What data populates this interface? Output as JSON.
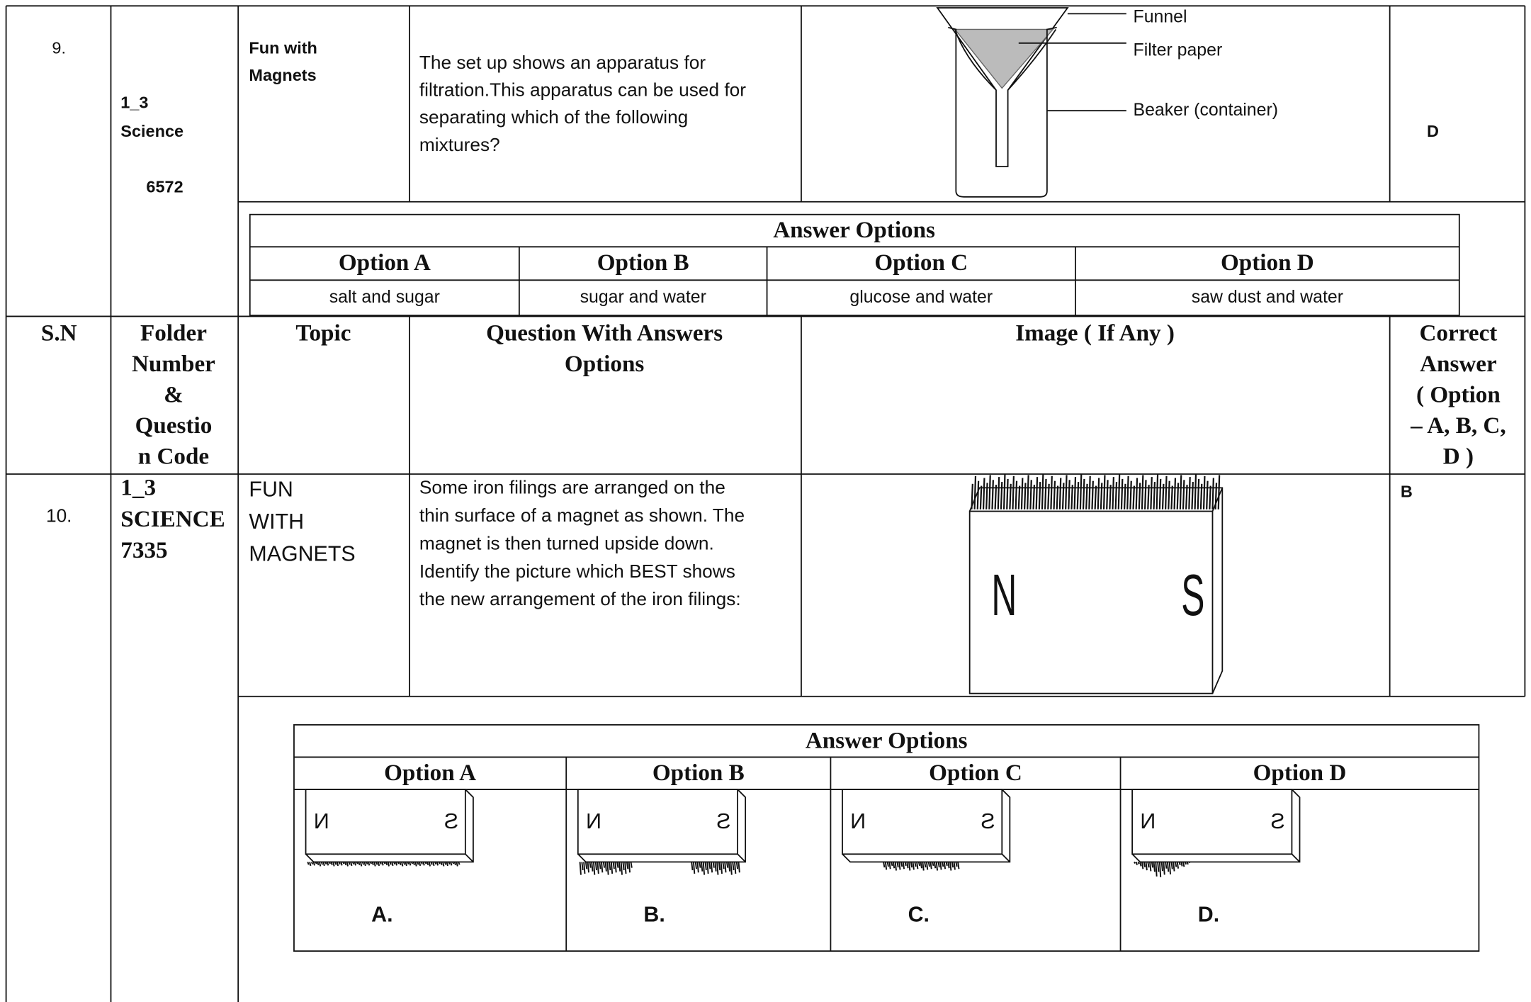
{
  "row9": {
    "sn": "9.",
    "folder": [
      "1_3",
      "Science",
      "6572"
    ],
    "topic": [
      "Fun with",
      "Magnets"
    ],
    "question": [
      "The set up shows an apparatus for",
      "filtration.This apparatus can be used for",
      "separating which of the following",
      "mixtures?"
    ],
    "image_labels": [
      "Funnel",
      "Filter paper",
      "Beaker (container)"
    ],
    "answer": "D",
    "options_title": "Answer Options",
    "option_headers": [
      "Option A",
      "Option B",
      "Option C",
      "Option D"
    ],
    "options": [
      "salt and sugar",
      "sugar and water",
      "glucose and water",
      "saw dust and water"
    ]
  },
  "header": {
    "sn": "S.N",
    "folder": [
      "Folder",
      "Number",
      "&",
      "Questio",
      "n Code"
    ],
    "topic": "Topic",
    "question": [
      "Question With Answers",
      "Options"
    ],
    "image": "Image ( If Any )",
    "answer": [
      "Correct",
      "Answer",
      "( Option",
      "– A, B, C,",
      "D )"
    ]
  },
  "row10": {
    "sn": "10.",
    "folder": [
      "1_3",
      "SCIENCE",
      "7335"
    ],
    "topic": [
      "FUN",
      "WITH",
      "MAGNETS"
    ],
    "question": [
      "Some iron filings are arranged on the",
      "thin surface of a magnet as shown. The",
      "magnet is then turned upside down.",
      "Identify the picture which BEST shows",
      "the new arrangement of the iron filings:"
    ],
    "image_labels": [
      "N",
      "S"
    ],
    "answer": "B",
    "options_title": "Answer Options",
    "option_headers": [
      "Option A",
      "Option B",
      "Option C",
      "Option D"
    ],
    "option_labels": [
      "A.",
      "B.",
      "C.",
      "D."
    ]
  }
}
